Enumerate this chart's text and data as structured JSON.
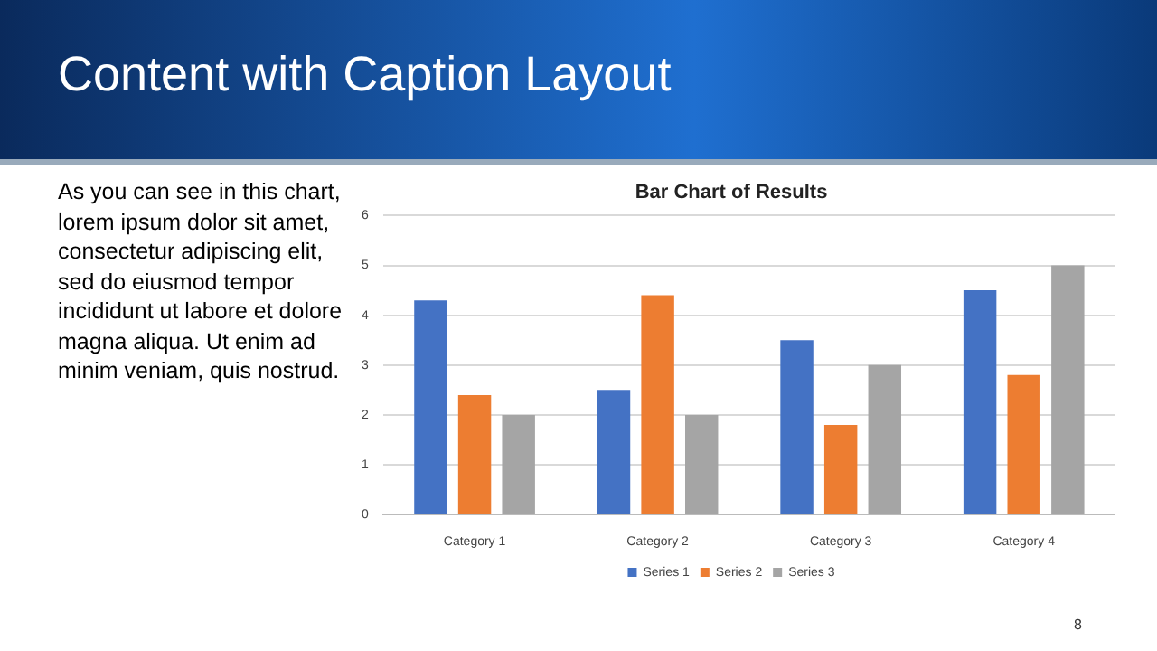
{
  "chart_data": {
    "type": "bar",
    "title": "Bar Chart of Results",
    "annotations": [
      "Content with Caption Layout",
      "As you can see in this chart, lorem ipsum dolor sit amet, consectetur adipiscing elit, sed do eiusmod tempor incididunt ut labore et dolore magna aliqua. Ut enim ad minim veniam, quis nostrud.",
      "8"
    ],
    "categories": [
      "Category 1",
      "Category 2",
      "Category 3",
      "Category 4"
    ],
    "series": [
      {
        "name": "Series 1",
        "color": "#4472c4",
        "values": [
          4.3,
          2.5,
          3.5,
          4.5
        ]
      },
      {
        "name": "Series 2",
        "color": "#ed7d31",
        "values": [
          2.4,
          4.4,
          1.8,
          2.8
        ]
      },
      {
        "name": "Series 3",
        "color": "#a5a5a5",
        "values": [
          2,
          2,
          3,
          5
        ]
      }
    ],
    "ylim": [
      0,
      6
    ],
    "yticks": [
      0,
      1,
      2,
      3,
      4,
      5,
      6
    ],
    "grid": "y",
    "legend": "bottom"
  }
}
